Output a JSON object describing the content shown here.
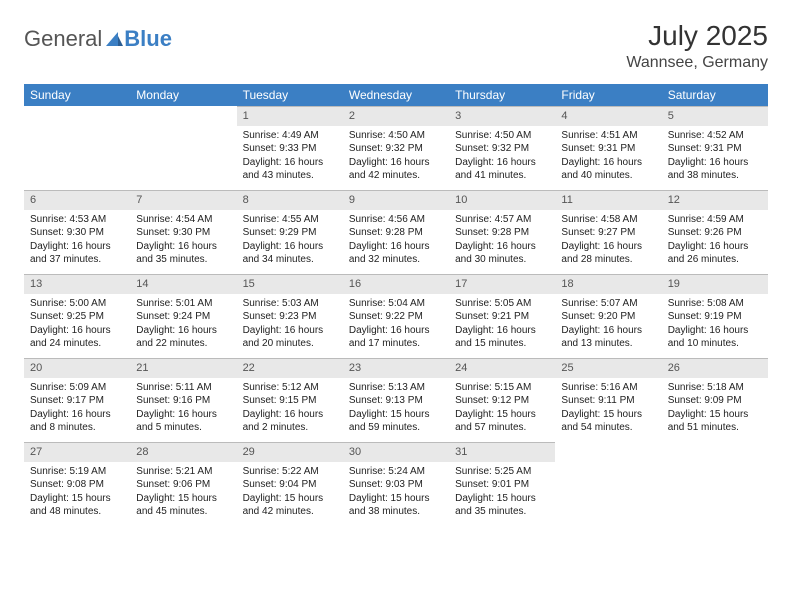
{
  "brand": {
    "part1": "General",
    "part2": "Blue"
  },
  "title": "July 2025",
  "location": "Wannsee, Germany",
  "colors": {
    "header_bg": "#3b7fc4",
    "header_text": "#ffffff",
    "daynum_bg": "#e8e8e8",
    "daynum_text": "#555555",
    "body_text": "#222222",
    "page_bg": "#ffffff"
  },
  "font": {
    "family": "Arial",
    "title_size": 28,
    "header_size": 12,
    "cell_size": 10
  },
  "weekdays": [
    "Sunday",
    "Monday",
    "Tuesday",
    "Wednesday",
    "Thursday",
    "Friday",
    "Saturday"
  ],
  "weeks": [
    [
      {
        "empty": true
      },
      {
        "empty": true
      },
      {
        "num": "1",
        "sunrise": "Sunrise: 4:49 AM",
        "sunset": "Sunset: 9:33 PM",
        "daylight": "Daylight: 16 hours and 43 minutes."
      },
      {
        "num": "2",
        "sunrise": "Sunrise: 4:50 AM",
        "sunset": "Sunset: 9:32 PM",
        "daylight": "Daylight: 16 hours and 42 minutes."
      },
      {
        "num": "3",
        "sunrise": "Sunrise: 4:50 AM",
        "sunset": "Sunset: 9:32 PM",
        "daylight": "Daylight: 16 hours and 41 minutes."
      },
      {
        "num": "4",
        "sunrise": "Sunrise: 4:51 AM",
        "sunset": "Sunset: 9:31 PM",
        "daylight": "Daylight: 16 hours and 40 minutes."
      },
      {
        "num": "5",
        "sunrise": "Sunrise: 4:52 AM",
        "sunset": "Sunset: 9:31 PM",
        "daylight": "Daylight: 16 hours and 38 minutes."
      }
    ],
    [
      {
        "num": "6",
        "sunrise": "Sunrise: 4:53 AM",
        "sunset": "Sunset: 9:30 PM",
        "daylight": "Daylight: 16 hours and 37 minutes."
      },
      {
        "num": "7",
        "sunrise": "Sunrise: 4:54 AM",
        "sunset": "Sunset: 9:30 PM",
        "daylight": "Daylight: 16 hours and 35 minutes."
      },
      {
        "num": "8",
        "sunrise": "Sunrise: 4:55 AM",
        "sunset": "Sunset: 9:29 PM",
        "daylight": "Daylight: 16 hours and 34 minutes."
      },
      {
        "num": "9",
        "sunrise": "Sunrise: 4:56 AM",
        "sunset": "Sunset: 9:28 PM",
        "daylight": "Daylight: 16 hours and 32 minutes."
      },
      {
        "num": "10",
        "sunrise": "Sunrise: 4:57 AM",
        "sunset": "Sunset: 9:28 PM",
        "daylight": "Daylight: 16 hours and 30 minutes."
      },
      {
        "num": "11",
        "sunrise": "Sunrise: 4:58 AM",
        "sunset": "Sunset: 9:27 PM",
        "daylight": "Daylight: 16 hours and 28 minutes."
      },
      {
        "num": "12",
        "sunrise": "Sunrise: 4:59 AM",
        "sunset": "Sunset: 9:26 PM",
        "daylight": "Daylight: 16 hours and 26 minutes."
      }
    ],
    [
      {
        "num": "13",
        "sunrise": "Sunrise: 5:00 AM",
        "sunset": "Sunset: 9:25 PM",
        "daylight": "Daylight: 16 hours and 24 minutes."
      },
      {
        "num": "14",
        "sunrise": "Sunrise: 5:01 AM",
        "sunset": "Sunset: 9:24 PM",
        "daylight": "Daylight: 16 hours and 22 minutes."
      },
      {
        "num": "15",
        "sunrise": "Sunrise: 5:03 AM",
        "sunset": "Sunset: 9:23 PM",
        "daylight": "Daylight: 16 hours and 20 minutes."
      },
      {
        "num": "16",
        "sunrise": "Sunrise: 5:04 AM",
        "sunset": "Sunset: 9:22 PM",
        "daylight": "Daylight: 16 hours and 17 minutes."
      },
      {
        "num": "17",
        "sunrise": "Sunrise: 5:05 AM",
        "sunset": "Sunset: 9:21 PM",
        "daylight": "Daylight: 16 hours and 15 minutes."
      },
      {
        "num": "18",
        "sunrise": "Sunrise: 5:07 AM",
        "sunset": "Sunset: 9:20 PM",
        "daylight": "Daylight: 16 hours and 13 minutes."
      },
      {
        "num": "19",
        "sunrise": "Sunrise: 5:08 AM",
        "sunset": "Sunset: 9:19 PM",
        "daylight": "Daylight: 16 hours and 10 minutes."
      }
    ],
    [
      {
        "num": "20",
        "sunrise": "Sunrise: 5:09 AM",
        "sunset": "Sunset: 9:17 PM",
        "daylight": "Daylight: 16 hours and 8 minutes."
      },
      {
        "num": "21",
        "sunrise": "Sunrise: 5:11 AM",
        "sunset": "Sunset: 9:16 PM",
        "daylight": "Daylight: 16 hours and 5 minutes."
      },
      {
        "num": "22",
        "sunrise": "Sunrise: 5:12 AM",
        "sunset": "Sunset: 9:15 PM",
        "daylight": "Daylight: 16 hours and 2 minutes."
      },
      {
        "num": "23",
        "sunrise": "Sunrise: 5:13 AM",
        "sunset": "Sunset: 9:13 PM",
        "daylight": "Daylight: 15 hours and 59 minutes."
      },
      {
        "num": "24",
        "sunrise": "Sunrise: 5:15 AM",
        "sunset": "Sunset: 9:12 PM",
        "daylight": "Daylight: 15 hours and 57 minutes."
      },
      {
        "num": "25",
        "sunrise": "Sunrise: 5:16 AM",
        "sunset": "Sunset: 9:11 PM",
        "daylight": "Daylight: 15 hours and 54 minutes."
      },
      {
        "num": "26",
        "sunrise": "Sunrise: 5:18 AM",
        "sunset": "Sunset: 9:09 PM",
        "daylight": "Daylight: 15 hours and 51 minutes."
      }
    ],
    [
      {
        "num": "27",
        "sunrise": "Sunrise: 5:19 AM",
        "sunset": "Sunset: 9:08 PM",
        "daylight": "Daylight: 15 hours and 48 minutes."
      },
      {
        "num": "28",
        "sunrise": "Sunrise: 5:21 AM",
        "sunset": "Sunset: 9:06 PM",
        "daylight": "Daylight: 15 hours and 45 minutes."
      },
      {
        "num": "29",
        "sunrise": "Sunrise: 5:22 AM",
        "sunset": "Sunset: 9:04 PM",
        "daylight": "Daylight: 15 hours and 42 minutes."
      },
      {
        "num": "30",
        "sunrise": "Sunrise: 5:24 AM",
        "sunset": "Sunset: 9:03 PM",
        "daylight": "Daylight: 15 hours and 38 minutes."
      },
      {
        "num": "31",
        "sunrise": "Sunrise: 5:25 AM",
        "sunset": "Sunset: 9:01 PM",
        "daylight": "Daylight: 15 hours and 35 minutes."
      },
      {
        "empty": true
      },
      {
        "empty": true
      }
    ]
  ]
}
